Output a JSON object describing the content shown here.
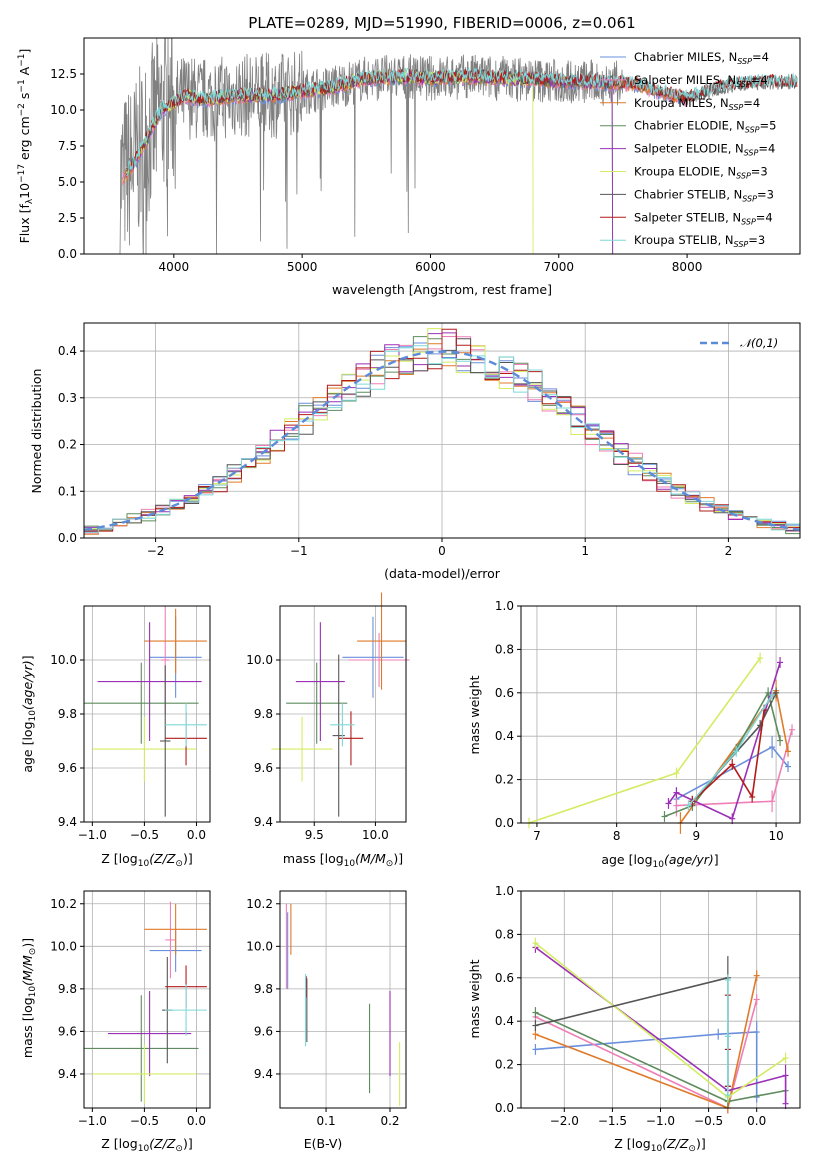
{
  "figure_title": "PLATE=0289, MJD=51990, FIBERID=0006, z=0.061",
  "colors": [
    "#6a8fdc",
    "#ef7fb6",
    "#e07a2a",
    "#5e8c5e",
    "#9b30b6",
    "#d3ec62",
    "#555555",
    "#b21c1c",
    "#7fd7d7"
  ],
  "series_names": [
    [
      "Chabrier MILES, N",
      "SSP",
      "=4"
    ],
    [
      "Salpeter MILES, N",
      "SSP",
      "=4"
    ],
    [
      "Kroupa MILES, N",
      "SSP",
      "=4"
    ],
    [
      "Chabrier ELODIE, N",
      "SSP",
      "=5"
    ],
    [
      "Salpeter ELODIE, N",
      "SSP",
      "=4"
    ],
    [
      "Kroupa ELODIE, N",
      "SSP",
      "=3"
    ],
    [
      "Chabrier STELIB, N",
      "SSP",
      "=3"
    ],
    [
      "Salpeter STELIB, N",
      "SSP",
      "=4"
    ],
    [
      "Kroupa STELIB, N",
      "SSP",
      "=3"
    ]
  ],
  "chart_data": [
    {
      "id": "spectrum",
      "type": "line",
      "xlabel": "wavelength [Angstrom, rest frame]",
      "ylabel": "Flux [f_λ 10^-17 erg cm^-2 s^-1 A^-1]",
      "xlim": [
        3300,
        8880
      ],
      "ylim": [
        0,
        15
      ],
      "xticks": [
        4000,
        5000,
        6000,
        7000,
        8000
      ],
      "yticks": [
        0.0,
        2.5,
        5.0,
        7.5,
        10.0,
        12.5
      ],
      "data_color": "#808080",
      "data_x_range": [
        3580,
        8860
      ],
      "cutoffs": {
        "Kroupa ELODIE": 6800,
        "Chabrier ELODIE": 7420,
        "Salpeter ELODIE": 7420
      },
      "continuum": [
        [
          3600,
          5.2
        ],
        [
          3700,
          6.5
        ],
        [
          3800,
          8.2
        ],
        [
          3900,
          10.0
        ],
        [
          4000,
          10.5
        ],
        [
          4100,
          11.0
        ],
        [
          4200,
          10.7
        ],
        [
          4300,
          10.8
        ],
        [
          4500,
          11.0
        ],
        [
          4800,
          11.0
        ],
        [
          5000,
          11.3
        ],
        [
          5200,
          11.5
        ],
        [
          5500,
          12.2
        ],
        [
          5800,
          12.3
        ],
        [
          6000,
          12.2
        ],
        [
          6300,
          12.3
        ],
        [
          6600,
          12.2
        ],
        [
          7000,
          12.0
        ],
        [
          7300,
          11.9
        ],
        [
          7600,
          11.8
        ],
        [
          7800,
          11.2
        ],
        [
          8000,
          10.8
        ],
        [
          8200,
          11.4
        ],
        [
          8400,
          11.8
        ],
        [
          8600,
          11.9
        ],
        [
          8860,
          11.9
        ]
      ],
      "grid": false,
      "legend_position": "upper right"
    },
    {
      "id": "residuals",
      "type": "histogram",
      "xlabel": "(data-model)/error",
      "ylabel": "Normed distribution",
      "xlim": [
        -2.5,
        2.5
      ],
      "ylim": [
        0,
        0.46
      ],
      "xticks": [
        -2,
        -1,
        0,
        1,
        2
      ],
      "yticks": [
        0.0,
        0.1,
        0.2,
        0.3,
        0.4
      ],
      "bin_width": 0.1,
      "reference_curve": {
        "label": "𝒩(0,1)",
        "color": "#5b8bd9"
      },
      "grid": true,
      "legend_position": "upper right"
    },
    {
      "id": "Z_vs_age",
      "type": "errorbar",
      "xlabel": "Z [log10(Z/Z⊙)]",
      "ylabel": "age  [log10(age/yr)]",
      "xlim": [
        -1.08,
        0.13
      ],
      "ylim": [
        9.4,
        10.2
      ],
      "xticks": [
        -1.0,
        -0.5,
        0.0
      ],
      "yticks": [
        9.4,
        9.6,
        9.8,
        10.0
      ],
      "grid": true,
      "points": [
        {
          "s": 0,
          "x": -0.2,
          "xerr": 0.25,
          "y": 10.01,
          "yerr": 0.15
        },
        {
          "s": 1,
          "x": -0.3,
          "xerr": 0.04,
          "y": 10.0,
          "yerr": 0.2
        },
        {
          "s": 2,
          "x": -0.2,
          "xerr": 0.3,
          "y": 10.07,
          "yerr": 0.12
        },
        {
          "s": 3,
          "x": -0.53,
          "xerr": 0.55,
          "y": 9.84,
          "yerr": 0.15
        },
        {
          "s": 4,
          "x": -0.45,
          "xerr": 0.5,
          "y": 9.92,
          "yerr": 0.22
        },
        {
          "s": 5,
          "x": -0.5,
          "xerr": 0.5,
          "y": 9.67,
          "yerr": 0.12
        },
        {
          "s": 6,
          "x": -0.3,
          "xerr": 0.05,
          "y": 9.7,
          "yerr": 0.28
        },
        {
          "s": 7,
          "x": -0.1,
          "xerr": 0.2,
          "y": 9.71,
          "yerr": 0.1
        },
        {
          "s": 8,
          "x": -0.1,
          "xerr": 0.2,
          "y": 9.76,
          "yerr": 0.08
        }
      ]
    },
    {
      "id": "mass_vs_age",
      "type": "errorbar",
      "xlabel": "mass [log10(M/M⊙)]",
      "ylabel": "",
      "xlim": [
        9.22,
        10.25
      ],
      "ylim": [
        9.4,
        10.2
      ],
      "xticks": [
        9.5,
        10.0
      ],
      "yticks": [
        9.4,
        9.6,
        9.8,
        10.0
      ],
      "grid": true,
      "points": [
        {
          "s": 0,
          "x": 9.98,
          "xerr": 0.25,
          "y": 10.01,
          "yerr": 0.15
        },
        {
          "s": 1,
          "x": 10.03,
          "xerr": 0.25,
          "y": 10.0,
          "yerr": 0.1
        },
        {
          "s": 2,
          "x": 10.05,
          "xerr": 0.2,
          "y": 10.07,
          "yerr": 0.18
        },
        {
          "s": 3,
          "x": 9.52,
          "xerr": 0.25,
          "y": 9.84,
          "yerr": 0.15
        },
        {
          "s": 4,
          "x": 9.55,
          "xerr": 0.2,
          "y": 9.92,
          "yerr": 0.22
        },
        {
          "s": 5,
          "x": 9.4,
          "xerr": 0.25,
          "y": 9.67,
          "yerr": 0.12
        },
        {
          "s": 6,
          "x": 9.7,
          "xerr": 0.05,
          "y": 9.72,
          "yerr": 0.3
        },
        {
          "s": 7,
          "x": 9.8,
          "xerr": 0.1,
          "y": 9.71,
          "yerr": 0.1
        },
        {
          "s": 8,
          "x": 9.73,
          "xerr": 0.1,
          "y": 9.76,
          "yerr": 0.08
        }
      ]
    },
    {
      "id": "age_vs_weight",
      "type": "line",
      "xlabel": "age  [log10(age/yr)]",
      "ylabel": "mass weight",
      "xlim": [
        6.8,
        10.3
      ],
      "ylim": [
        0,
        1.0
      ],
      "xticks": [
        7,
        8,
        9,
        10
      ],
      "yticks": [
        0.0,
        0.2,
        0.4,
        0.6,
        0.8,
        1.0
      ],
      "grid": true,
      "series": [
        {
          "s": 0,
          "points": [
            [
              8.75,
              0.11
            ],
            [
              9.95,
              0.35
            ],
            [
              10.15,
              0.26
            ]
          ],
          "err": [
            0.1,
            0.1,
            0.05
          ]
        },
        {
          "s": 1,
          "points": [
            [
              8.75,
              0.08
            ],
            [
              9.95,
              0.1
            ],
            [
              10.2,
              0.43
            ]
          ],
          "err": [
            0.1,
            0.1,
            0.05
          ]
        },
        {
          "s": 2,
          "points": [
            [
              8.8,
              0.0
            ],
            [
              10.0,
              0.61
            ],
            [
              10.15,
              0.33
            ]
          ],
          "err": [
            0.1,
            0.1,
            0.05
          ]
        },
        {
          "s": 3,
          "points": [
            [
              8.6,
              0.03
            ],
            [
              8.95,
              0.08
            ],
            [
              9.5,
              0.34
            ],
            [
              9.9,
              0.6
            ],
            [
              10.05,
              0.38
            ]
          ],
          "err": [
            0.05,
            0.05,
            0.05,
            0.05,
            0.05
          ]
        },
        {
          "s": 4,
          "points": [
            [
              8.65,
              0.09
            ],
            [
              8.75,
              0.14
            ],
            [
              9.45,
              0.02
            ],
            [
              10.05,
              0.74
            ]
          ],
          "err": [
            0.05,
            0.05,
            0.05,
            0.05
          ]
        },
        {
          "s": 5,
          "points": [
            [
              6.9,
              0.0
            ],
            [
              8.75,
              0.23
            ],
            [
              9.8,
              0.76
            ]
          ],
          "err": [
            0.05,
            0.05,
            0.05
          ]
        },
        {
          "s": 6,
          "points": [
            [
              8.95,
              0.1
            ],
            [
              9.8,
              0.45
            ],
            [
              10.0,
              0.6
            ]
          ],
          "err": [
            0.05,
            0.05,
            0.05
          ]
        },
        {
          "s": 7,
          "points": [
            [
              8.95,
              0.1
            ],
            [
              9.45,
              0.27
            ],
            [
              9.7,
              0.12
            ],
            [
              9.85,
              0.52
            ]
          ],
          "err": [
            0.05,
            0.05,
            0.05,
            0.05
          ]
        },
        {
          "s": 8,
          "points": [
            [
              8.9,
              0.08
            ],
            [
              9.5,
              0.33
            ],
            [
              9.95,
              0.59
            ]
          ],
          "err": [
            0.05,
            0.05,
            0.05
          ]
        }
      ]
    },
    {
      "id": "Z_vs_mass",
      "type": "errorbar",
      "xlabel": "Z [log10(Z/Z⊙)]",
      "ylabel": "mass [log10(M/M⊙)]",
      "xlim": [
        -1.08,
        0.13
      ],
      "ylim": [
        9.24,
        10.26
      ],
      "xticks": [
        -1.0,
        -0.5,
        0.0
      ],
      "yticks": [
        9.4,
        9.6,
        9.8,
        10.0,
        10.2
      ],
      "grid": true,
      "points": [
        {
          "s": 0,
          "x": -0.2,
          "xerr": 0.25,
          "y": 9.98,
          "yerr": 0.1
        },
        {
          "s": 1,
          "x": -0.25,
          "xerr": 0.05,
          "y": 10.03,
          "yerr": 0.18
        },
        {
          "s": 2,
          "x": -0.2,
          "xerr": 0.3,
          "y": 10.08,
          "yerr": 0.12
        },
        {
          "s": 3,
          "x": -0.53,
          "xerr": 0.55,
          "y": 9.52,
          "yerr": 0.25
        },
        {
          "s": 4,
          "x": -0.45,
          "xerr": 0.4,
          "y": 9.59,
          "yerr": 0.2
        },
        {
          "s": 5,
          "x": -0.5,
          "xerr": 0.5,
          "y": 9.4,
          "yerr": 0.14
        },
        {
          "s": 6,
          "x": -0.28,
          "xerr": 0.05,
          "y": 9.7,
          "yerr": 0.25
        },
        {
          "s": 7,
          "x": -0.1,
          "xerr": 0.2,
          "y": 9.81,
          "yerr": 0.1
        },
        {
          "s": 8,
          "x": -0.1,
          "xerr": 0.2,
          "y": 9.7,
          "yerr": 0.12
        }
      ]
    },
    {
      "id": "ebv_vs_mass",
      "type": "errorbar",
      "xlabel": "E(B-V)",
      "ylabel": "",
      "xlim": [
        0.028,
        0.225
      ],
      "ylim": [
        9.24,
        10.26
      ],
      "xticks": [
        0.1,
        0.2
      ],
      "yticks": [
        9.4,
        9.6,
        9.8,
        10.0,
        10.2
      ],
      "grid": true,
      "points": [
        {
          "s": 0,
          "x": 0.04,
          "y": 9.98,
          "yerr": 0.18
        },
        {
          "s": 1,
          "x": 0.038,
          "y": 10.0,
          "yerr": 0.2
        },
        {
          "s": 2,
          "x": 0.045,
          "y": 10.08,
          "yerr": 0.12
        },
        {
          "s": 3,
          "x": 0.168,
          "y": 9.52,
          "yerr": 0.21
        },
        {
          "s": 4,
          "x": 0.2,
          "y": 9.59,
          "yerr": 0.2
        },
        {
          "s": 5,
          "x": 0.215,
          "y": 9.4,
          "yerr": 0.15
        },
        {
          "s": 6,
          "x": 0.07,
          "y": 9.7,
          "yerr": 0.15
        },
        {
          "s": 7,
          "x": 0.069,
          "y": 9.81,
          "yerr": 0.05
        },
        {
          "s": 8,
          "x": 0.068,
          "y": 9.7,
          "yerr": 0.17
        }
      ]
    },
    {
      "id": "Z_vs_weight",
      "type": "line",
      "xlabel": "Z [log10(Z/Z⊙)]",
      "ylabel": "mass weight",
      "xlim": [
        -2.45,
        0.45
      ],
      "ylim": [
        0,
        1.0
      ],
      "xticks": [
        -2.0,
        -1.5,
        -1.0,
        -0.5,
        0.0
      ],
      "yticks": [
        0.0,
        0.2,
        0.4,
        0.6,
        0.8,
        1.0
      ],
      "grid": true,
      "series": [
        {
          "s": 0,
          "points": [
            [
              -2.3,
              0.27
            ],
            [
              -0.4,
              0.34
            ],
            [
              0.0,
              0.35
            ],
            [
              0.0,
              0.05
            ]
          ],
          "err": [
            0.05,
            0.05,
            0.1,
            0.05
          ]
        },
        {
          "s": 1,
          "points": [
            [
              -2.3,
              0.42
            ],
            [
              -0.3,
              0.0
            ],
            [
              0.0,
              0.5
            ]
          ],
          "err": [
            0.05,
            0.05,
            0.05
          ]
        },
        {
          "s": 2,
          "points": [
            [
              -2.3,
              0.34
            ],
            [
              -0.3,
              0.0
            ],
            [
              0.0,
              0.61
            ]
          ],
          "err": [
            0.05,
            0.05,
            0.05
          ]
        },
        {
          "s": 3,
          "points": [
            [
              -2.3,
              0.44
            ],
            [
              -0.3,
              0.03
            ],
            [
              0.3,
              0.08
            ]
          ],
          "err": [
            0.05,
            0.05,
            0.05
          ]
        },
        {
          "s": 4,
          "points": [
            [
              -2.3,
              0.74
            ],
            [
              -0.3,
              0.08
            ],
            [
              0.3,
              0.15
            ],
            [
              0.3,
              0.02
            ]
          ],
          "err": [
            0.05,
            0.05,
            0.1,
            0.05
          ]
        },
        {
          "s": 5,
          "points": [
            [
              -2.3,
              0.76
            ],
            [
              -0.3,
              0.05
            ],
            [
              0.3,
              0.23
            ]
          ],
          "err": [
            0.05,
            0.05,
            0.05
          ]
        },
        {
          "s": 6,
          "points": [
            [
              -2.3,
              0.38
            ],
            [
              -0.3,
              0.6
            ],
            [
              -0.3,
              0.1
            ]
          ],
          "err": [
            0.05,
            0.2,
            0.05
          ]
        },
        {
          "s": 7,
          "points": [
            [
              -0.3,
              0.1
            ],
            [
              -0.3,
              0.27
            ],
            [
              -0.3,
              0.52
            ]
          ],
          "err": [
            0.05,
            0.05,
            0.05
          ]
        },
        {
          "s": 8,
          "points": [
            [
              -0.3,
              0.06
            ],
            [
              -0.3,
              0.33
            ],
            [
              -0.3,
              0.59
            ]
          ],
          "err": [
            0.05,
            0.05,
            0.05
          ]
        }
      ]
    }
  ]
}
